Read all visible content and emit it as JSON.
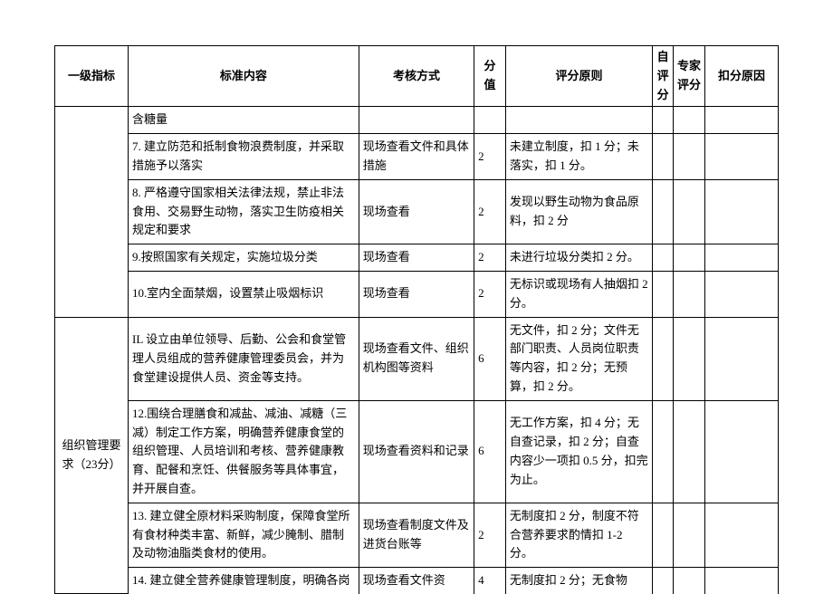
{
  "headers": {
    "level1": "一级指标",
    "content": "标准内容",
    "method": "考核方式",
    "score": "分值",
    "rule": "评分原则",
    "self": "自评分",
    "expert": "专家评分",
    "reason": "扣分原因"
  },
  "rows": [
    {
      "content": "含糖量",
      "method": "",
      "score": "",
      "rule": ""
    },
    {
      "content": "7. 建立防范和抵制食物浪费制度，并采取措施予以落实",
      "method": "现场查看文件和具体措施",
      "score": "2",
      "rule": "未建立制度，扣 1 分；未落实，扣 1 分。"
    },
    {
      "content": "8. 严格遵守国家相关法律法规，禁止非法食用、交易野生动物，落实卫生防疫相关规定和要求",
      "method": "现场查看",
      "score": "2",
      "rule": "发现以野生动物为食品原料，扣 2 分"
    },
    {
      "content": "9.按照国家有关规定，实施垃圾分类",
      "method": "现场查看",
      "score": "2",
      "rule": "未进行垃圾分类扣 2 分。"
    },
    {
      "content": "10.室内全面禁烟，设置禁止吸烟标识",
      "method": "现场查看",
      "score": "2",
      "rule": "无标识或现场有人抽烟扣 2 分。"
    }
  ],
  "section2": {
    "level1": "组织管理要求（23分）",
    "rows": [
      {
        "content": "IL 设立由单位领导、后勤、公会和食堂管理人员组成的营养健康管理委员会，并为食堂建设提供人员、资金等支持。",
        "method": "现场查看文件、组织机构图等资料",
        "score": "6",
        "rule": "无文件，扣 2 分；文件无部门职责、人员岗位职责等内容，扣 2 分；无预算，扣 2 分。"
      },
      {
        "content": "12.围绕合理膳食和减盐、减油、减糖（三减）制定工作方案，明确营养健康食堂的组织管理、人员培训和考核、营养健康教育、配餐和烹饪、供餐服务等具体事宜，并开展自查。",
        "method": "现场查看资料和记录",
        "score": "6",
        "rule": "无工作方案，扣 4 分；无自查记录，扣 2 分；自查内容少一项扣 0.5 分，扣完为止。"
      },
      {
        "content": "13. 建立健全原材料采购制度，保障食堂所有食材种类丰富、新鲜，减少腌制、腊制及动物油脂类食材的使用。",
        "method": "现场查看制度文件及进货台账等",
        "score": "2",
        "rule": "无制度扣 2 分，制度不符合营养要求酌情扣 1-2 分。"
      },
      {
        "content": "14. 建立健全营养健康管理制度，明确各岗",
        "method": "现场查看文件资",
        "score": "4",
        "rule": "无制度扣 2 分；无食物"
      }
    ]
  }
}
